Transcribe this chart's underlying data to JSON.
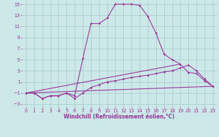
{
  "background_color": "#cce8e8",
  "grid_color": "#aacccc",
  "line_color": "#993399",
  "xlabel": "Windchill (Refroidissement éolien,°C)",
  "xlim": [
    -0.5,
    23.5
  ],
  "ylim": [
    -3.5,
    15.5
  ],
  "yticks": [
    -3,
    -1,
    1,
    3,
    5,
    7,
    9,
    11,
    13,
    15
  ],
  "xticks": [
    0,
    1,
    2,
    3,
    4,
    5,
    6,
    7,
    8,
    9,
    10,
    11,
    12,
    13,
    14,
    15,
    16,
    17,
    18,
    19,
    20,
    21,
    22,
    23
  ],
  "line1_x": [
    0,
    1,
    2,
    3,
    4,
    5,
    6,
    7,
    8,
    9,
    10,
    11,
    12,
    13,
    14,
    15,
    16,
    17,
    18,
    19,
    20,
    21,
    22,
    23
  ],
  "line1_y": [
    -1,
    -1,
    -2,
    -1.5,
    -1.5,
    -1,
    -1.5,
    5.2,
    11.5,
    11.5,
    12.5,
    15,
    15,
    15,
    14.8,
    12.8,
    9.8,
    6,
    5,
    4.2,
    2.7,
    2.5,
    1.2,
    0.2
  ],
  "line2_x": [
    0,
    1,
    2,
    3,
    4,
    5,
    6,
    7,
    8,
    9,
    10,
    11,
    12,
    13,
    14,
    15,
    16,
    17,
    18,
    19,
    20,
    21,
    22,
    23
  ],
  "line2_y": [
    -1,
    -1,
    -2,
    -1.5,
    -1.5,
    -1,
    -2,
    -1,
    0,
    0.5,
    1,
    1.2,
    1.5,
    1.8,
    2,
    2.2,
    2.5,
    2.8,
    3,
    3.5,
    4,
    3,
    1.5,
    0.2
  ],
  "line3_x": [
    0,
    23
  ],
  "line3_y": [
    -1,
    0.2
  ],
  "line4_x": [
    0,
    19
  ],
  "line4_y": [
    -1,
    4.2
  ],
  "xlabel_fontsize": 5.5,
  "tick_fontsize": 5,
  "linewidth": 0.8,
  "markersize": 1.8
}
